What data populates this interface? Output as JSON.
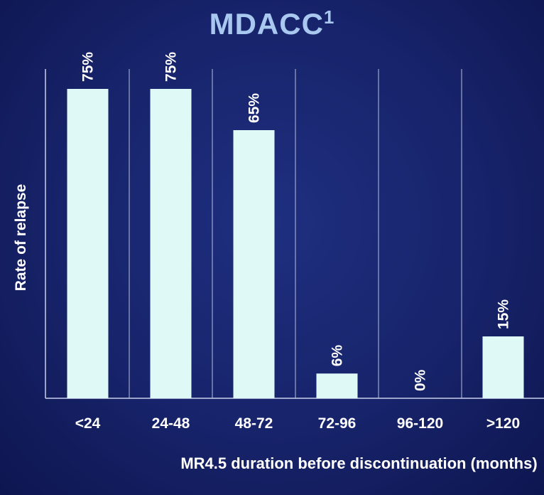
{
  "chart_data": {
    "type": "bar",
    "title": "MDACC",
    "title_superscript": "1",
    "xlabel": "MR4.5 duration before discontinuation (months)",
    "ylabel": "Rate of relapse",
    "categories": [
      "<24",
      "24-48",
      "48-72",
      "72-96",
      "96-120",
      ">120"
    ],
    "values": [
      75,
      75,
      65,
      6,
      0,
      15
    ],
    "data_labels": [
      "75%",
      "75%",
      "65%",
      "6%",
      "0%",
      "15%"
    ],
    "ylim": [
      0,
      100
    ],
    "grid": "vertical separators",
    "colors": {
      "bar": "#dff9f6",
      "background": "#17236a",
      "title": "#a9c8f0",
      "text": "#ffffff",
      "lines": "#c8d0ea"
    }
  }
}
